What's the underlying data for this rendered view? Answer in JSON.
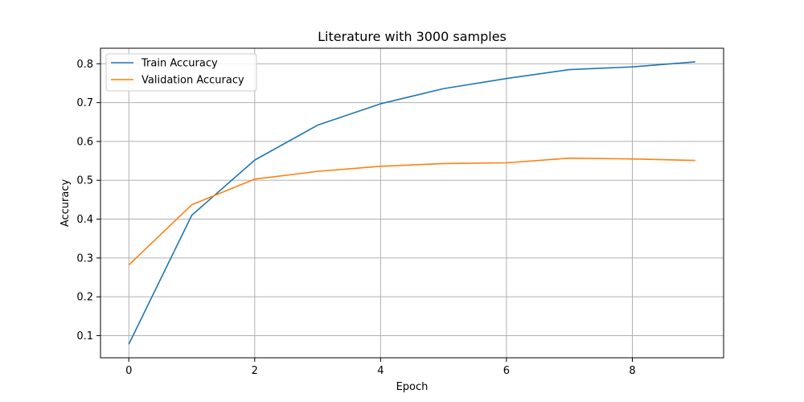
{
  "chart_data": {
    "type": "line",
    "title": "Literature with 3000 samples",
    "xlabel": "Epoch",
    "ylabel": "Accuracy",
    "x": [
      0,
      1,
      2,
      3,
      4,
      5,
      6,
      7,
      8,
      9
    ],
    "xlim": [
      -0.45,
      9.45
    ],
    "ylim": [
      0.043,
      0.84
    ],
    "xticks": [
      0,
      2,
      4,
      6,
      8
    ],
    "yticks": [
      0.1,
      0.2,
      0.3,
      0.4,
      0.5,
      0.6,
      0.7,
      0.8
    ],
    "grid": true,
    "legend_position": "top-left",
    "series": [
      {
        "name": "Train Accuracy",
        "color": "#1f77b4",
        "values": [
          0.078,
          0.41,
          0.552,
          0.642,
          0.697,
          0.736,
          0.762,
          0.785,
          0.792,
          0.805
        ]
      },
      {
        "name": "Validation Accuracy",
        "color": "#ff7f0e",
        "values": [
          0.282,
          0.437,
          0.503,
          0.523,
          0.536,
          0.543,
          0.545,
          0.557,
          0.555,
          0.551
        ]
      }
    ]
  }
}
